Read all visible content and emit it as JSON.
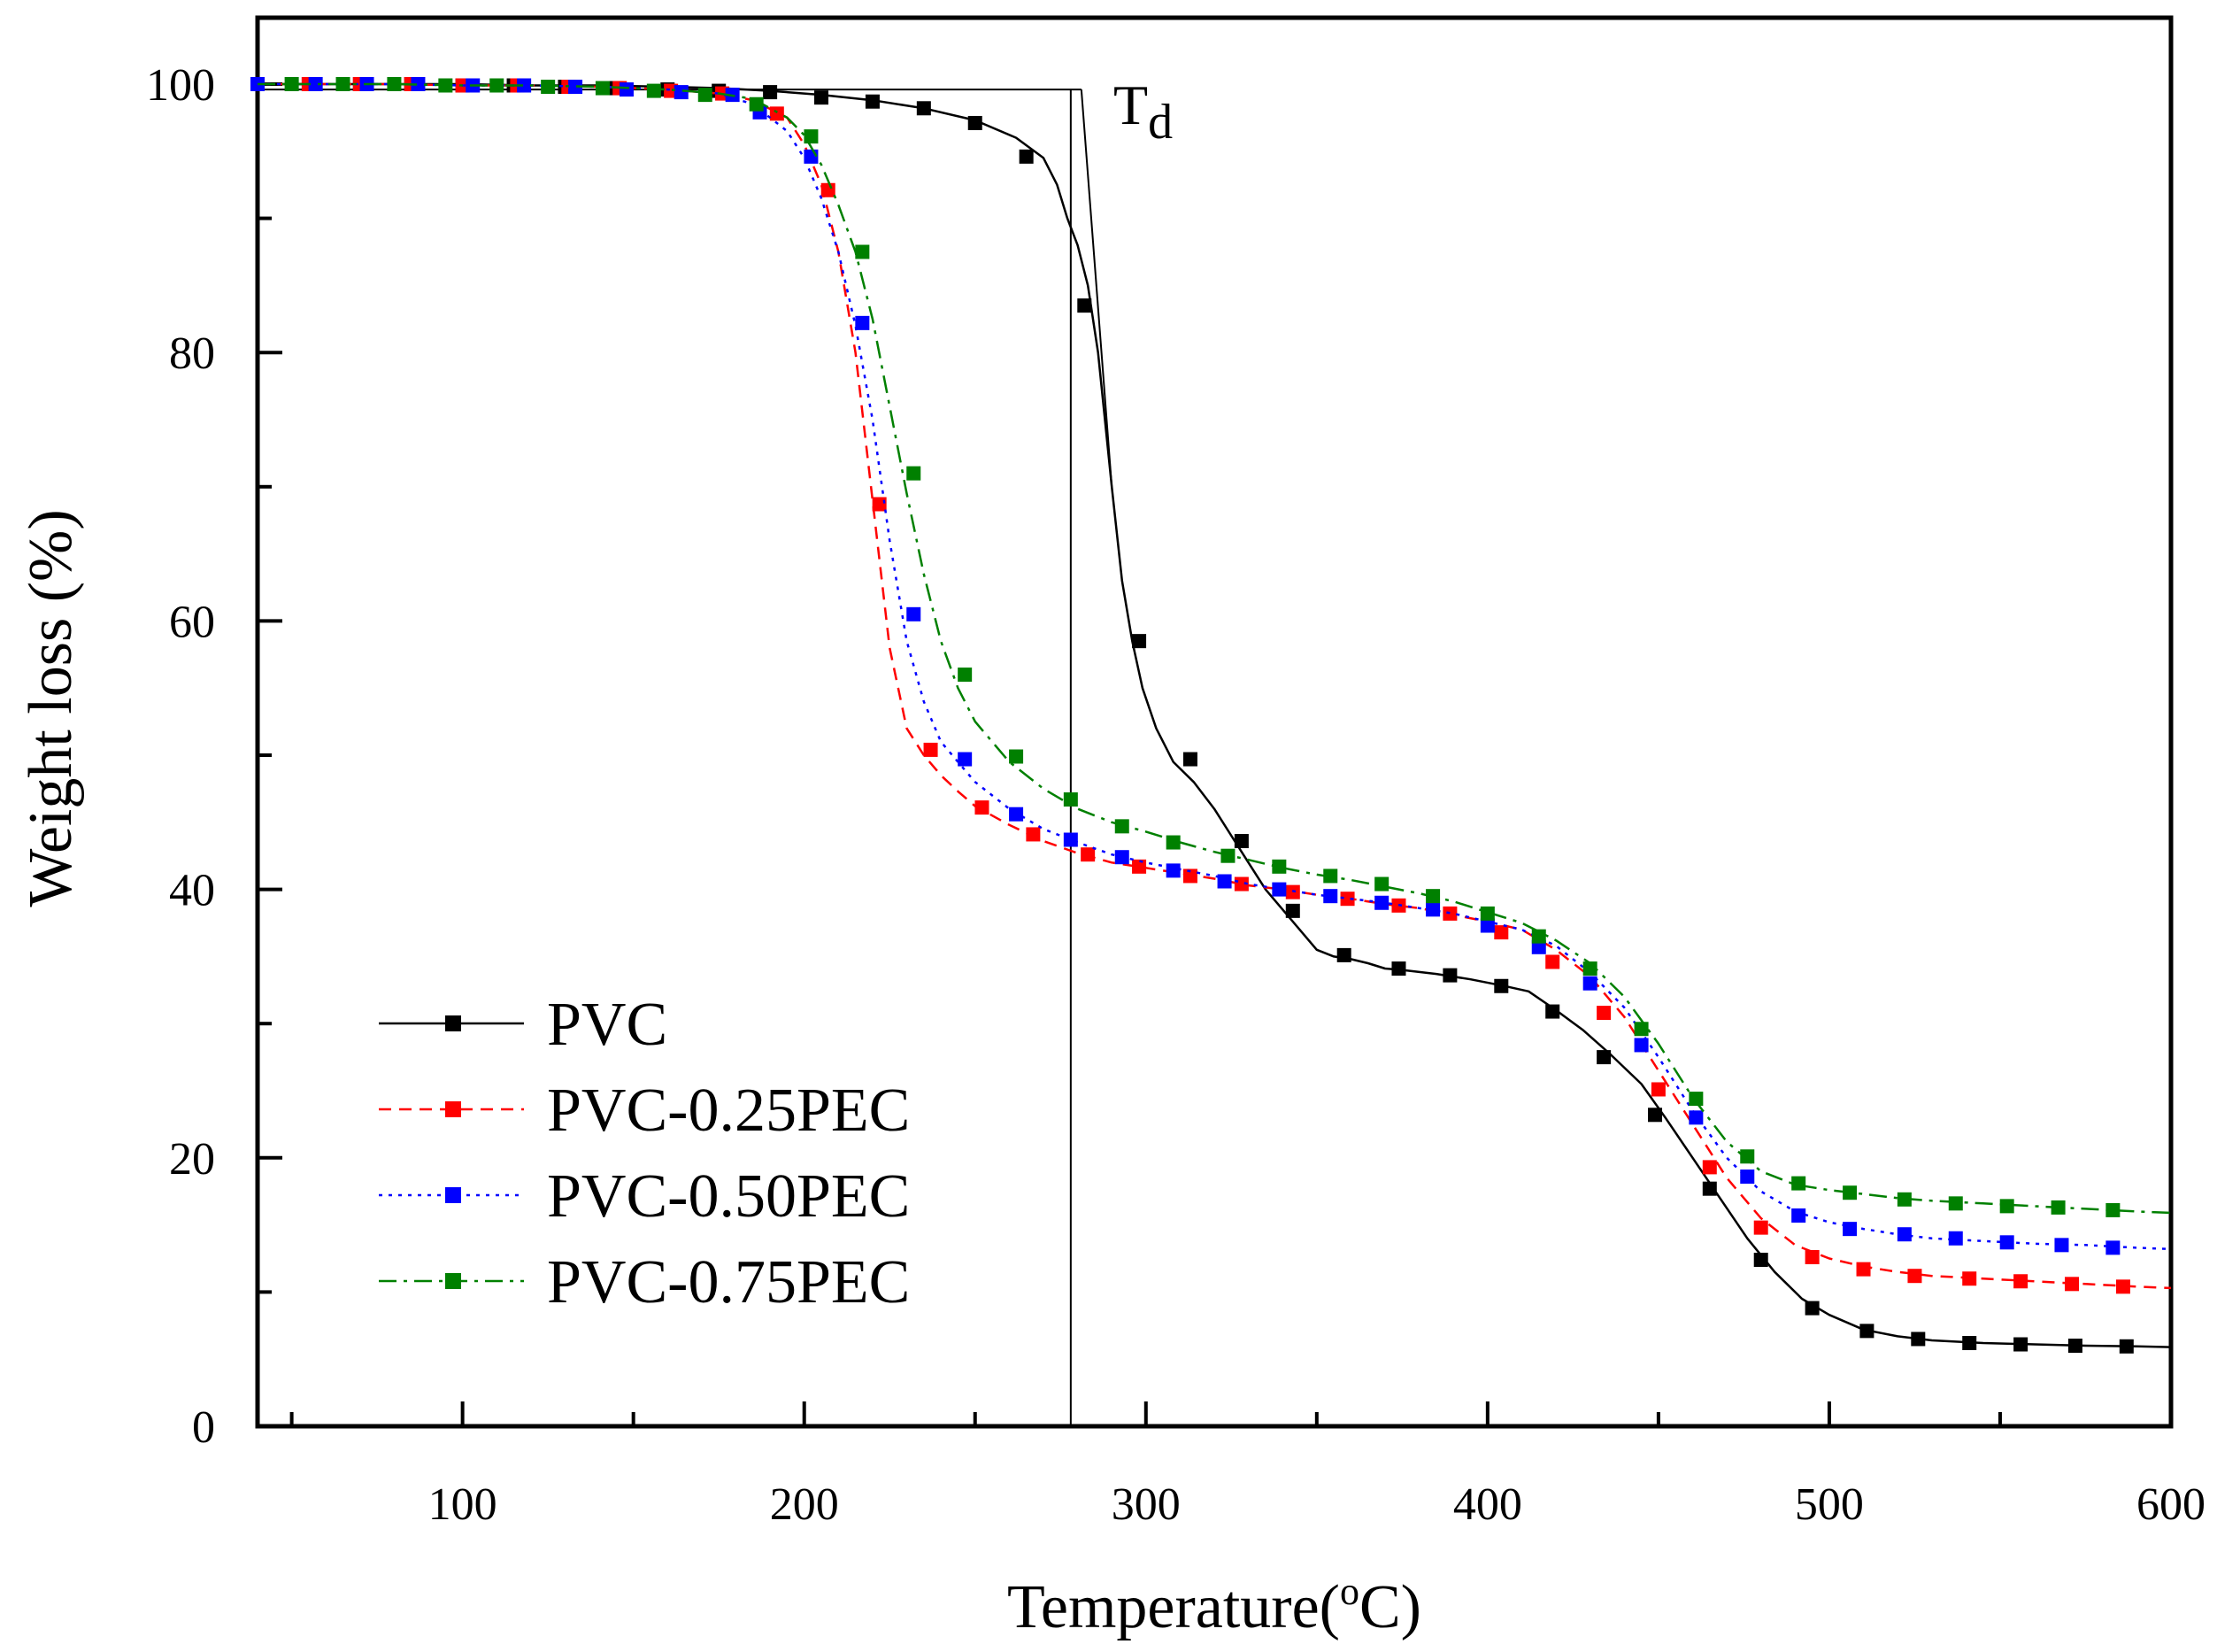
{
  "chart_data": {
    "type": "line",
    "title": "",
    "xlabel": "Temperature(°C)",
    "xlabel_parts": {
      "main": "Temperature(",
      "sup": "o",
      "unit": "C)"
    },
    "ylabel": "Weight loss (%)",
    "xlim": [
      40,
      600
    ],
    "ylim": [
      0,
      105
    ],
    "xticks": [
      100,
      200,
      300,
      400,
      500,
      600
    ],
    "xtick_labels": [
      "100",
      "200",
      "300",
      "400",
      "500",
      "600"
    ],
    "yticks": [
      0,
      20,
      40,
      60,
      80,
      100
    ],
    "ytick_labels": [
      "0",
      "20",
      "40",
      "60",
      "80",
      "100"
    ],
    "grid": false,
    "legend_position": "bottom-left",
    "annotation": {
      "main": "T",
      "sub": "d",
      "x": 278
    },
    "series": [
      {
        "name": "PVC",
        "color": "#000000",
        "line_style": "solid",
        "x": [
          40,
          50,
          60,
          80,
          100,
          120,
          140,
          160,
          175,
          190,
          205,
          220,
          235,
          250,
          262,
          270,
          274,
          277,
          280,
          283,
          286,
          290,
          293,
          296,
          299,
          303,
          308,
          314,
          320,
          325,
          330,
          335,
          340,
          345,
          350,
          355,
          360,
          365,
          370,
          375,
          385,
          395,
          405,
          412,
          420,
          428,
          436,
          445,
          452,
          460,
          468,
          476,
          484,
          492,
          500,
          510,
          520,
          530,
          545,
          560,
          575,
          590,
          600
        ],
        "y": [
          100,
          100,
          100,
          100,
          100,
          99.9,
          99.9,
          99.8,
          99.7,
          99.5,
          99.2,
          98.8,
          98.2,
          97.3,
          96,
          94.5,
          92.5,
          90,
          88,
          85,
          80,
          70,
          63,
          58.5,
          55,
          52,
          49.5,
          48,
          46,
          44,
          42,
          40,
          38.5,
          37,
          35.5,
          35,
          34.8,
          34.5,
          34.1,
          34,
          33.7,
          33.3,
          32.8,
          32.4,
          31,
          29.5,
          27.7,
          25.5,
          23,
          20,
          17,
          14,
          11.5,
          9.5,
          8.3,
          7.2,
          6.7,
          6.4,
          6.2,
          6.1,
          6,
          5.95,
          5.9
        ],
        "markers_x": [
          40,
          55,
          70,
          85,
          100,
          115,
          130,
          145,
          160,
          175,
          190,
          205,
          220,
          235,
          250,
          265,
          282,
          298,
          313,
          328,
          343,
          358,
          374,
          389,
          404,
          419,
          434,
          449,
          465,
          480,
          495,
          511,
          526,
          541,
          556,
          572,
          587
        ],
        "markers_y": [
          100,
          100,
          100,
          100,
          99.9,
          99.9,
          99.8,
          99.7,
          99.6,
          99.5,
          99.4,
          99,
          98.7,
          98.2,
          97.1,
          94.6,
          83.5,
          58.5,
          49.7,
          43.6,
          38.4,
          35.1,
          34.1,
          33.6,
          32.8,
          30.9,
          27.5,
          23.2,
          17.7,
          12.4,
          8.8,
          7.1,
          6.5,
          6.2,
          6.1,
          6,
          5.95
        ]
      },
      {
        "name": "PVC-0.25PEC",
        "color": "#ff0000",
        "line_style": "dashed",
        "x": [
          40,
          60,
          80,
          100,
          120,
          140,
          160,
          175,
          185,
          195,
          200,
          205,
          210,
          215,
          220,
          225,
          230,
          235,
          240,
          245,
          250,
          260,
          270,
          280,
          290,
          300,
          310,
          320,
          330,
          340,
          350,
          360,
          370,
          380,
          390,
          400,
          410,
          420,
          430,
          440,
          450,
          460,
          470,
          480,
          490,
          500,
          510,
          520,
          530,
          545,
          560,
          575,
          590,
          600
        ],
        "y": [
          100,
          100,
          100,
          99.9,
          99.9,
          99.8,
          99.6,
          99.3,
          98.8,
          97.5,
          95.5,
          92.5,
          87.5,
          80,
          69,
          58,
          52,
          50,
          48.5,
          47.3,
          46.2,
          44.8,
          43.6,
          42.7,
          42,
          41.6,
          41.2,
          40.8,
          40.3,
          40,
          39.6,
          39.3,
          38.9,
          38.6,
          38.1,
          37.6,
          37,
          35.5,
          33.5,
          30.5,
          26.5,
          22.5,
          18.5,
          15.5,
          13.5,
          12.5,
          11.9,
          11.5,
          11.2,
          11,
          10.8,
          10.6,
          10.4,
          10.3
        ],
        "markers_x": [
          40,
          55,
          70,
          85,
          100,
          116,
          131,
          146,
          161,
          176,
          192,
          207,
          222,
          237,
          252,
          267,
          283,
          298,
          313,
          328,
          343,
          359,
          374,
          389,
          404,
          419,
          434,
          450,
          465,
          480,
          495,
          510,
          525,
          541,
          556,
          571,
          586
        ],
        "markers_y": [
          100,
          100,
          100,
          100,
          99.9,
          99.9,
          99.8,
          99.7,
          99.5,
          99.3,
          97.8,
          92.1,
          68.7,
          50.4,
          46.1,
          44.1,
          42.6,
          41.7,
          41,
          40.4,
          39.8,
          39.3,
          38.8,
          38.2,
          36.8,
          34.6,
          30.8,
          25.1,
          19.3,
          14.8,
          12.6,
          11.7,
          11.2,
          11,
          10.8,
          10.6,
          10.4
        ]
      },
      {
        "name": "PVC-0.50PEC",
        "color": "#0000ff",
        "line_style": "dotted",
        "x": [
          40,
          60,
          80,
          100,
          120,
          140,
          160,
          175,
          185,
          195,
          200,
          205,
          210,
          215,
          220,
          225,
          230,
          235,
          240,
          245,
          250,
          260,
          270,
          280,
          290,
          300,
          310,
          320,
          330,
          340,
          350,
          360,
          370,
          380,
          390,
          400,
          410,
          420,
          430,
          440,
          450,
          460,
          470,
          480,
          490,
          500,
          510,
          520,
          530,
          545,
          560,
          575,
          590,
          600
        ],
        "y": [
          100,
          100,
          100,
          99.9,
          99.9,
          99.8,
          99.6,
          99.3,
          98.5,
          96.5,
          94.5,
          91.5,
          87.5,
          82,
          75,
          66,
          58.5,
          54,
          51,
          49.5,
          48,
          46,
          44.5,
          43.5,
          42.6,
          42,
          41.5,
          41,
          40.4,
          40,
          39.6,
          39.3,
          39,
          38.6,
          38.2,
          37.6,
          37,
          35.8,
          33.8,
          31.2,
          27.5,
          23.5,
          20,
          17.5,
          16,
          15.2,
          14.7,
          14.3,
          14,
          13.8,
          13.6,
          13.5,
          13.3,
          13.2
        ],
        "markers_x": [
          40,
          57,
          72,
          87,
          103,
          118,
          133,
          148,
          164,
          179,
          187,
          202,
          217,
          232,
          247,
          262,
          278,
          293,
          308,
          323,
          339,
          354,
          369,
          384,
          400,
          415,
          430,
          445,
          461,
          476,
          491,
          506,
          522,
          537,
          552,
          568,
          583
        ],
        "markers_y": [
          100,
          100,
          100,
          100,
          99.9,
          99.9,
          99.8,
          99.6,
          99.4,
          99.2,
          97.9,
          94.6,
          82.2,
          60.5,
          49.7,
          45.6,
          43.7,
          42.4,
          41.4,
          40.6,
          40,
          39.5,
          39,
          38.5,
          37.3,
          35.7,
          33,
          28.4,
          23,
          18.6,
          15.7,
          14.7,
          14.3,
          14,
          13.7,
          13.5,
          13.3
        ]
      },
      {
        "name": "PVC-0.75PEC",
        "color": "#008000",
        "line_style": "dashdot",
        "x": [
          40,
          60,
          80,
          100,
          120,
          140,
          160,
          175,
          185,
          195,
          200,
          205,
          210,
          215,
          220,
          225,
          230,
          235,
          240,
          245,
          250,
          260,
          270,
          280,
          290,
          300,
          310,
          320,
          330,
          340,
          350,
          360,
          370,
          380,
          390,
          400,
          410,
          420,
          430,
          440,
          450,
          460,
          470,
          480,
          490,
          500,
          510,
          520,
          530,
          545,
          560,
          575,
          590,
          600
        ],
        "y": [
          100,
          100,
          100,
          99.9,
          99.9,
          99.8,
          99.6,
          99.3,
          98.9,
          97.5,
          96.2,
          94,
          91,
          87.5,
          82.5,
          76,
          69.5,
          63.5,
          58.5,
          55,
          52.5,
          49.5,
          47.5,
          46,
          45,
          44.3,
          43.5,
          42.8,
          42.2,
          41.6,
          41.1,
          40.7,
          40.2,
          39.7,
          39.1,
          38.3,
          37.5,
          36.2,
          34.5,
          32,
          28.5,
          24.5,
          21.2,
          19,
          18,
          17.6,
          17.3,
          17,
          16.8,
          16.6,
          16.4,
          16.2,
          16,
          15.9
        ],
        "markers_x": [
          50,
          65,
          80,
          95,
          110,
          125,
          141,
          156,
          171,
          186,
          202,
          217,
          232,
          247,
          262,
          278,
          293,
          308,
          324,
          339,
          354,
          369,
          384,
          400,
          415,
          430,
          445,
          461,
          476,
          491,
          506,
          522,
          537,
          552,
          567,
          583
        ],
        "markers_y": [
          100,
          100,
          100,
          99.9,
          99.9,
          99.8,
          99.7,
          99.5,
          99.2,
          98.5,
          96.1,
          87.5,
          71,
          56,
          49.9,
          46.7,
          44.7,
          43.5,
          42.5,
          41.7,
          41,
          40.4,
          39.5,
          38.2,
          36.5,
          34.1,
          29.6,
          24.4,
          20.1,
          18.1,
          17.4,
          16.9,
          16.6,
          16.4,
          16.3,
          16.1
        ]
      }
    ]
  }
}
